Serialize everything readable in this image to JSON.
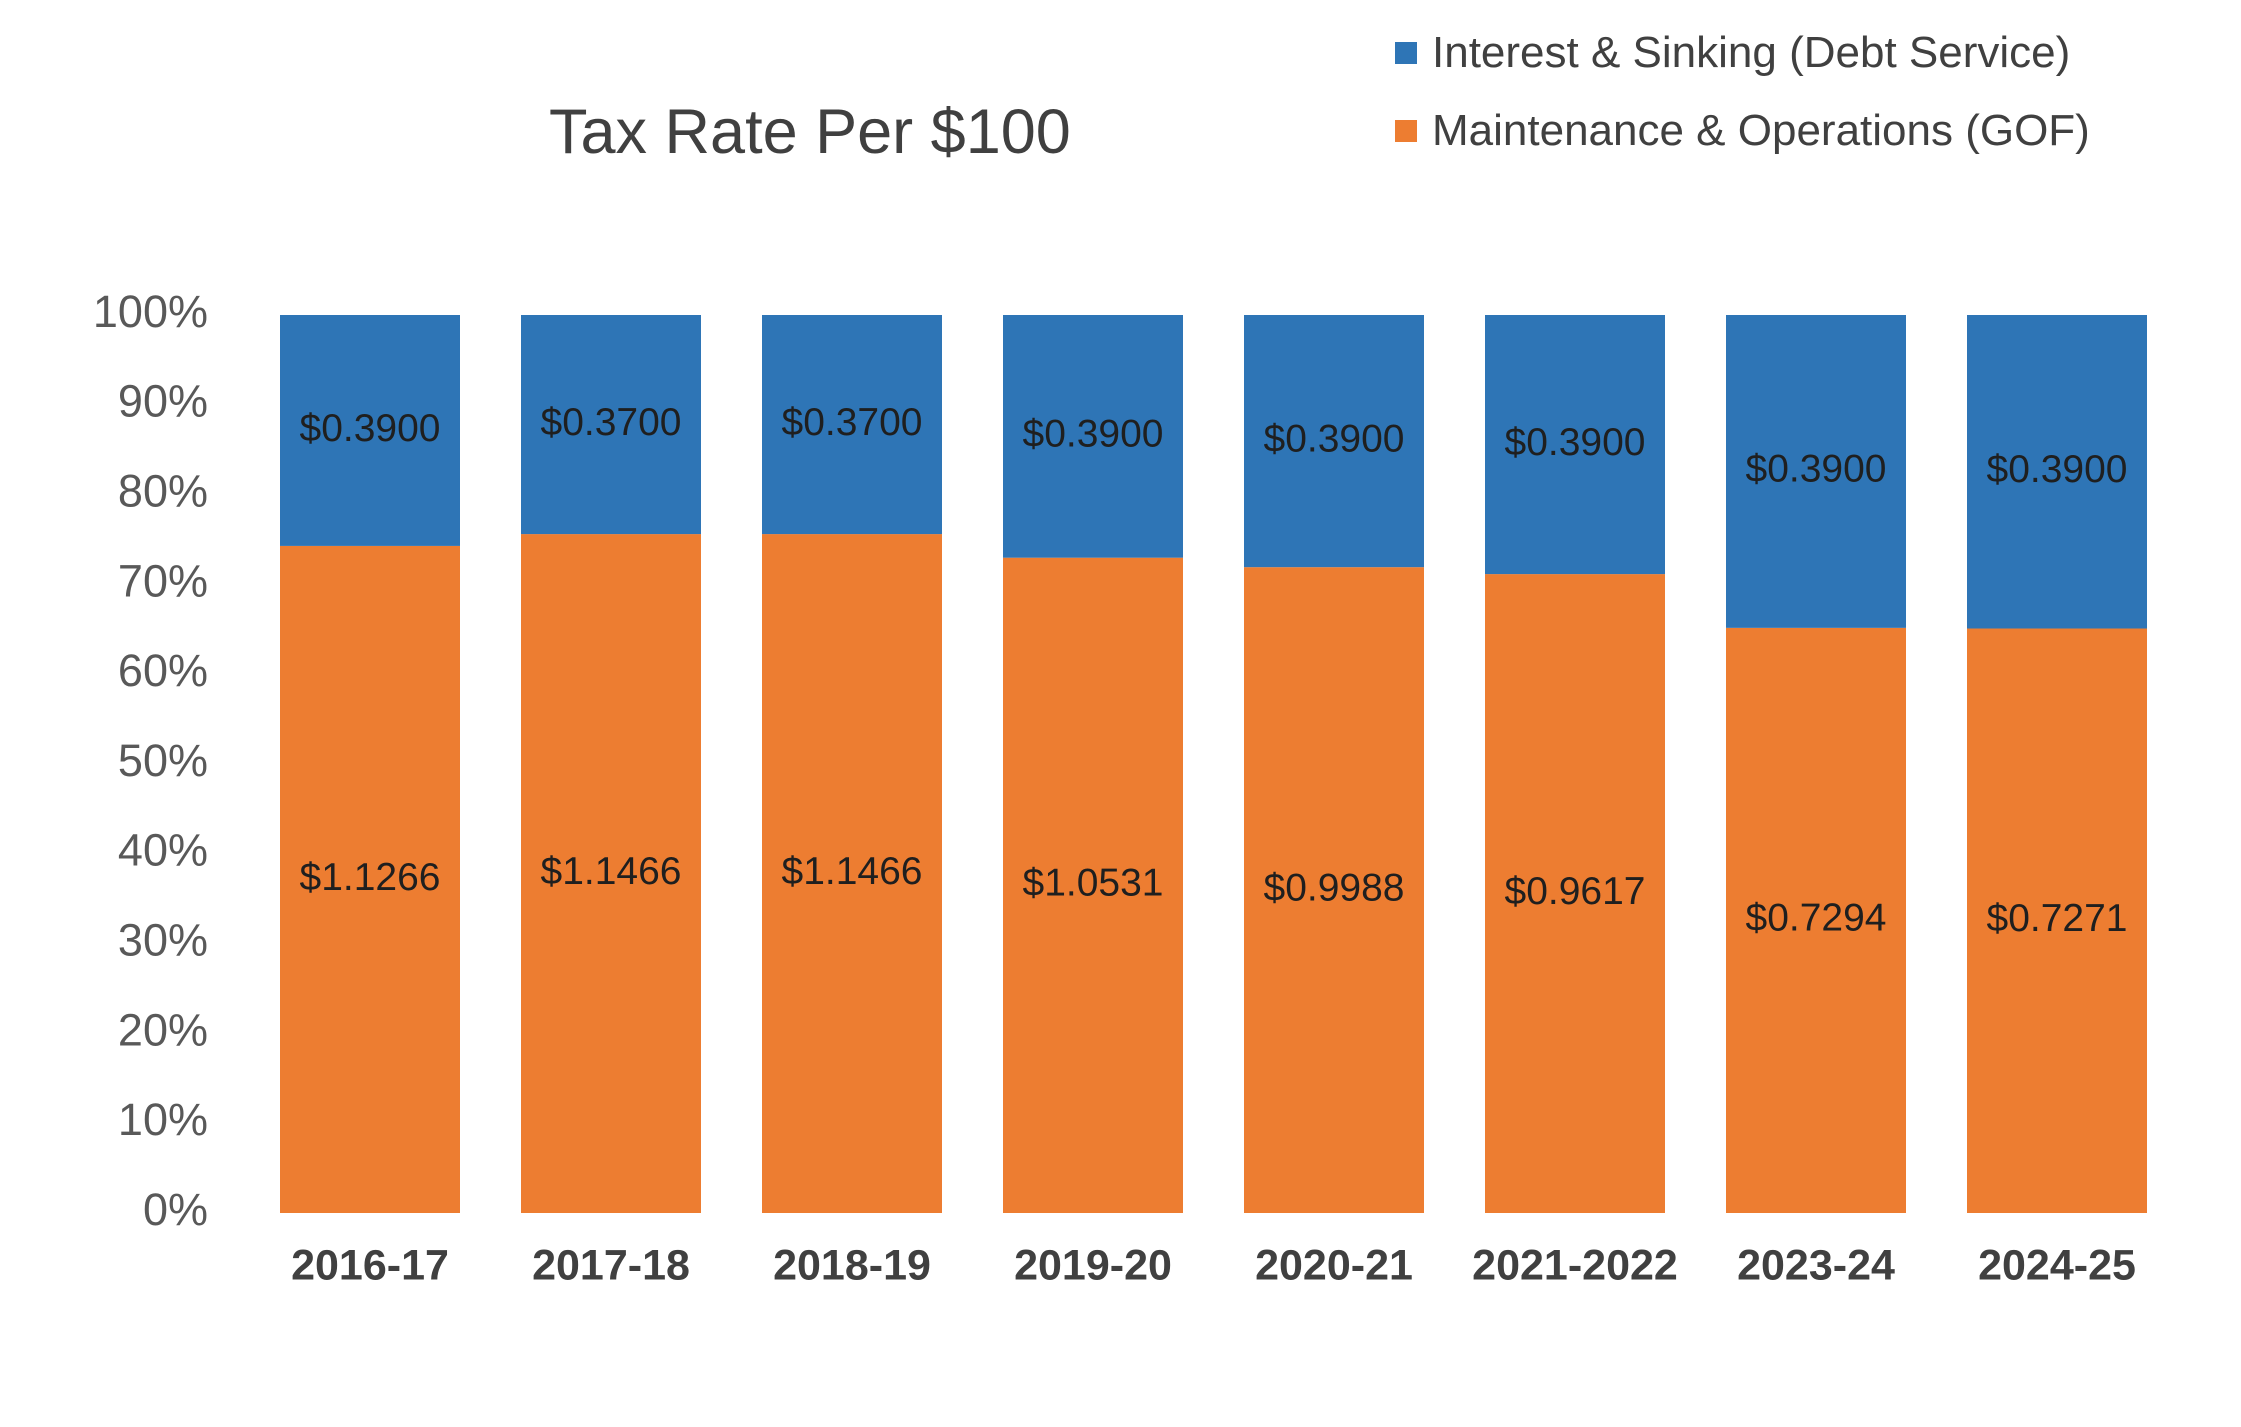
{
  "chart_data": {
    "type": "bar",
    "stacked": true,
    "normalized": true,
    "title": "Tax Rate Per $100",
    "categories": [
      "2016-17",
      "2017-18",
      "2018-19",
      "2019-20",
      "2020-21",
      "2021-2022",
      "2023-24",
      "2024-25"
    ],
    "series": [
      {
        "name": "Maintenance & Operations (GOF)",
        "color": "#ED7D31",
        "values": [
          1.1266,
          1.1466,
          1.1466,
          1.0531,
          0.9988,
          0.9617,
          0.7294,
          0.7271
        ],
        "labels": [
          "$1.1266",
          "$1.1466",
          "$1.1466",
          "$1.0531",
          "$0.9988",
          "$0.9617",
          "$0.7294",
          "$0.7271"
        ]
      },
      {
        "name": "Interest & Sinking (Debt Service)",
        "color": "#2E75B6",
        "values": [
          0.39,
          0.37,
          0.37,
          0.39,
          0.39,
          0.39,
          0.39,
          0.39
        ],
        "labels": [
          "$0.3900",
          "$0.3700",
          "$0.3700",
          "$0.3900",
          "$0.3900",
          "$0.3900",
          "$0.3900",
          "$0.3900"
        ]
      }
    ],
    "yticks": [
      "0%",
      "10%",
      "20%",
      "30%",
      "40%",
      "50%",
      "60%",
      "70%",
      "80%",
      "90%",
      "100%"
    ],
    "ylim": [
      0,
      100
    ],
    "grid": false,
    "legend_position": "top-right"
  }
}
